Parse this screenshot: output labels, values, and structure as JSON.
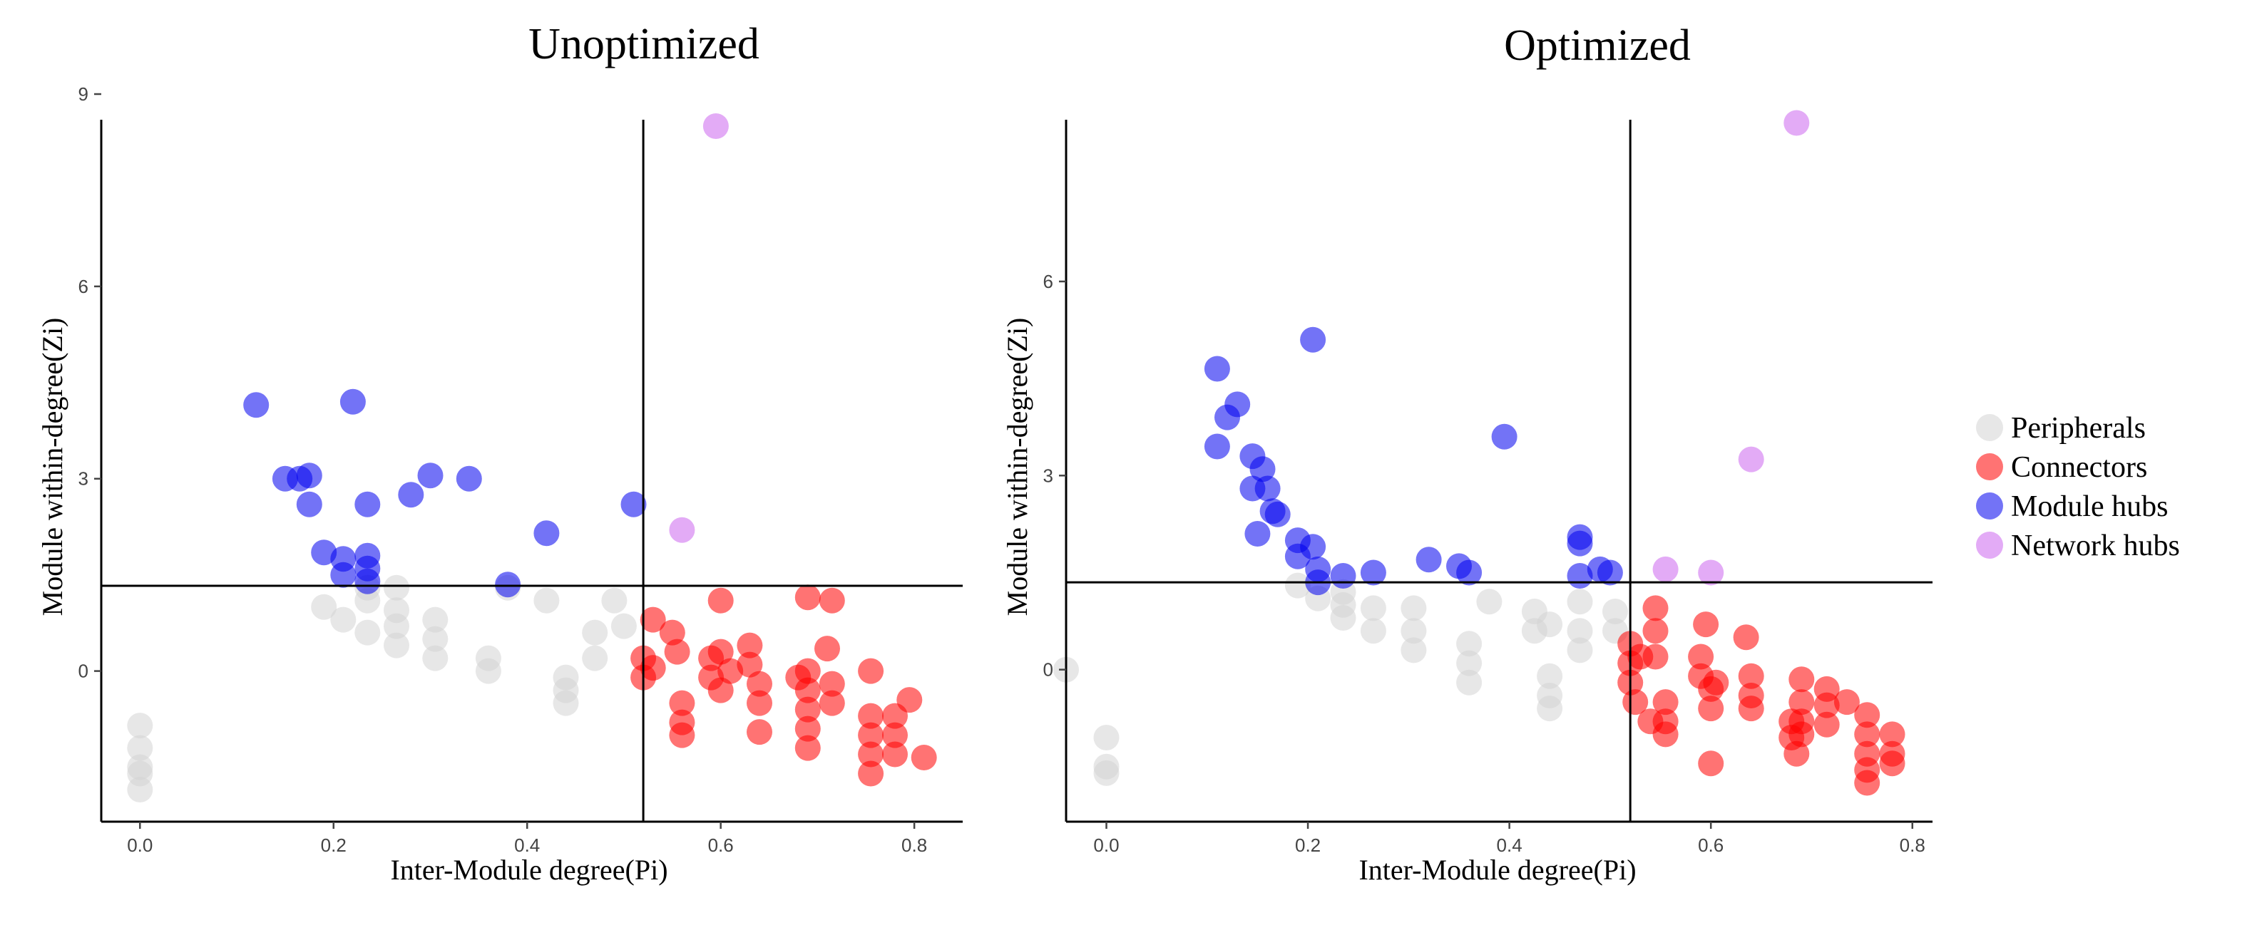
{
  "colors": {
    "Peripherals": "#d3d3d3",
    "Connectors": "#ff0000",
    "Module hubs": "#0000ee",
    "Network hubs": "#cc66ee"
  },
  "legend": {
    "items": [
      {
        "label": "Peripherals",
        "color": "#d3d3d3"
      },
      {
        "label": "Connectors",
        "color": "#ff0000"
      },
      {
        "label": "Module hubs",
        "color": "#0000ee"
      },
      {
        "label": "Network hubs",
        "color": "#cc66ee"
      }
    ],
    "placement": "right"
  },
  "chart_data": [
    {
      "type": "scatter",
      "title": "Unoptimized",
      "xlabel": "Inter-Module degree(Pi)",
      "ylabel": "Module within-degree(Zi)",
      "xlim": [
        -0.04,
        0.85
      ],
      "ylim": [
        -2.35,
        8.6
      ],
      "xticks": [
        "0.0",
        "0.2",
        "0.4",
        "0.6",
        "0.8"
      ],
      "yticks": [
        "0",
        "3",
        "6",
        "9"
      ],
      "ref_lines": {
        "x": 0.52,
        "y": 1.33
      },
      "grid": false,
      "series": [
        {
          "name": "Peripherals",
          "points": [
            [
              0,
              -0.85
            ],
            [
              0,
              -1.2
            ],
            [
              0,
              -1.5
            ],
            [
              0,
              -1.85
            ],
            [
              0,
              -1.6
            ],
            [
              0.19,
              1.0
            ],
            [
              0.21,
              0.8
            ],
            [
              0.235,
              0.6
            ],
            [
              0.235,
              1.1
            ],
            [
              0.235,
              1.3
            ],
            [
              0.265,
              0.4
            ],
            [
              0.265,
              0.7
            ],
            [
              0.265,
              0.95
            ],
            [
              0.265,
              1.3
            ],
            [
              0.305,
              0.2
            ],
            [
              0.305,
              0.5
            ],
            [
              0.305,
              0.8
            ],
            [
              0.36,
              0.0
            ],
            [
              0.36,
              0.2
            ],
            [
              0.42,
              1.1
            ],
            [
              0.44,
              -0.1
            ],
            [
              0.44,
              -0.3
            ],
            [
              0.44,
              -0.5
            ],
            [
              0.47,
              0.6
            ],
            [
              0.47,
              0.2
            ],
            [
              0.49,
              1.1
            ],
            [
              0.5,
              0.7
            ],
            [
              0.38,
              1.3
            ]
          ]
        },
        {
          "name": "Connectors",
          "points": [
            [
              0.53,
              0.8
            ],
            [
              0.52,
              0.2
            ],
            [
              0.52,
              -0.1
            ],
            [
              0.53,
              0.05
            ],
            [
              0.55,
              0.6
            ],
            [
              0.555,
              0.3
            ],
            [
              0.56,
              -0.5
            ],
            [
              0.56,
              -0.8
            ],
            [
              0.56,
              -1.0
            ],
            [
              0.59,
              0.2
            ],
            [
              0.59,
              -0.1
            ],
            [
              0.6,
              1.1
            ],
            [
              0.6,
              0.3
            ],
            [
              0.6,
              -0.3
            ],
            [
              0.61,
              0.0
            ],
            [
              0.63,
              0.4
            ],
            [
              0.63,
              0.1
            ],
            [
              0.64,
              -0.2
            ],
            [
              0.64,
              -0.5
            ],
            [
              0.64,
              -0.95
            ],
            [
              0.68,
              -0.1
            ],
            [
              0.69,
              0.0
            ],
            [
              0.69,
              -0.3
            ],
            [
              0.69,
              -0.6
            ],
            [
              0.69,
              -0.9
            ],
            [
              0.69,
              -1.2
            ],
            [
              0.69,
              1.15
            ],
            [
              0.71,
              0.35
            ],
            [
              0.715,
              1.1
            ],
            [
              0.715,
              -0.2
            ],
            [
              0.715,
              -0.5
            ],
            [
              0.755,
              0.0
            ],
            [
              0.755,
              -0.7
            ],
            [
              0.755,
              -1.0
            ],
            [
              0.755,
              -1.3
            ],
            [
              0.755,
              -1.6
            ],
            [
              0.78,
              -0.7
            ],
            [
              0.78,
              -1.0
            ],
            [
              0.78,
              -1.3
            ],
            [
              0.795,
              -0.45
            ],
            [
              0.81,
              -1.35
            ]
          ]
        },
        {
          "name": "Module hubs",
          "points": [
            [
              0.12,
              4.15
            ],
            [
              0.15,
              3.0
            ],
            [
              0.165,
              3.0
            ],
            [
              0.175,
              3.05
            ],
            [
              0.175,
              2.6
            ],
            [
              0.19,
              1.85
            ],
            [
              0.21,
              1.75
            ],
            [
              0.21,
              1.5
            ],
            [
              0.22,
              4.2
            ],
            [
              0.235,
              2.6
            ],
            [
              0.235,
              1.8
            ],
            [
              0.235,
              1.6
            ],
            [
              0.235,
              1.4
            ],
            [
              0.28,
              2.75
            ],
            [
              0.3,
              3.05
            ],
            [
              0.34,
              3.0
            ],
            [
              0.38,
              1.35
            ],
            [
              0.42,
              2.15
            ],
            [
              0.51,
              2.6
            ]
          ]
        },
        {
          "name": "Network hubs",
          "points": [
            [
              0.595,
              8.5
            ],
            [
              0.56,
              2.2
            ]
          ]
        }
      ]
    },
    {
      "type": "scatter",
      "title": "Optimized",
      "xlabel": "Inter-Module degree(Pi)",
      "ylabel": "Module within-degree(Zi)",
      "xlim": [
        -0.04,
        0.82
      ],
      "ylim": [
        -2.35,
        8.5
      ],
      "xticks": [
        "0.0",
        "0.2",
        "0.4",
        "0.6",
        "0.8"
      ],
      "yticks": [
        "0",
        "3",
        "6"
      ],
      "ref_lines": {
        "x": 0.52,
        "y": 1.35
      },
      "grid": false,
      "series": [
        {
          "name": "Peripherals",
          "points": [
            [
              -0.04,
              0.0
            ],
            [
              0,
              -1.05
            ],
            [
              0,
              -1.5
            ],
            [
              0,
              -1.6
            ],
            [
              0.19,
              1.3
            ],
            [
              0.21,
              1.1
            ],
            [
              0.235,
              0.8
            ],
            [
              0.235,
              1.0
            ],
            [
              0.235,
              1.2
            ],
            [
              0.265,
              0.6
            ],
            [
              0.265,
              0.95
            ],
            [
              0.305,
              0.3
            ],
            [
              0.305,
              0.6
            ],
            [
              0.305,
              0.95
            ],
            [
              0.36,
              -0.2
            ],
            [
              0.36,
              0.1
            ],
            [
              0.36,
              0.4
            ],
            [
              0.38,
              1.05
            ],
            [
              0.425,
              0.6
            ],
            [
              0.425,
              0.9
            ],
            [
              0.44,
              -0.1
            ],
            [
              0.44,
              -0.4
            ],
            [
              0.44,
              -0.6
            ],
            [
              0.44,
              0.7
            ],
            [
              0.47,
              0.3
            ],
            [
              0.47,
              0.6
            ],
            [
              0.47,
              1.05
            ],
            [
              0.505,
              0.6
            ],
            [
              0.505,
              0.9
            ]
          ]
        },
        {
          "name": "Connectors",
          "points": [
            [
              0.52,
              0.4
            ],
            [
              0.52,
              0.1
            ],
            [
              0.52,
              -0.2
            ],
            [
              0.525,
              -0.5
            ],
            [
              0.53,
              0.2
            ],
            [
              0.54,
              -0.8
            ],
            [
              0.545,
              0.95
            ],
            [
              0.545,
              0.6
            ],
            [
              0.545,
              0.2
            ],
            [
              0.555,
              -0.5
            ],
            [
              0.555,
              -0.8
            ],
            [
              0.555,
              -1.0
            ],
            [
              0.59,
              0.2
            ],
            [
              0.59,
              -0.1
            ],
            [
              0.595,
              0.7
            ],
            [
              0.6,
              -0.3
            ],
            [
              0.6,
              -0.6
            ],
            [
              0.6,
              -1.45
            ],
            [
              0.605,
              -0.2
            ],
            [
              0.635,
              0.5
            ],
            [
              0.64,
              -0.1
            ],
            [
              0.64,
              -0.4
            ],
            [
              0.64,
              -0.6
            ],
            [
              0.68,
              -0.8
            ],
            [
              0.68,
              -1.05
            ],
            [
              0.685,
              -1.3
            ],
            [
              0.69,
              -0.15
            ],
            [
              0.69,
              -0.5
            ],
            [
              0.69,
              -0.8
            ],
            [
              0.69,
              -1.0
            ],
            [
              0.715,
              -0.3
            ],
            [
              0.715,
              -0.55
            ],
            [
              0.715,
              -0.85
            ],
            [
              0.735,
              -0.5
            ],
            [
              0.755,
              -0.7
            ],
            [
              0.755,
              -1.0
            ],
            [
              0.755,
              -1.3
            ],
            [
              0.755,
              -1.55
            ],
            [
              0.755,
              -1.75
            ],
            [
              0.78,
              -1.0
            ],
            [
              0.78,
              -1.3
            ],
            [
              0.78,
              -1.45
            ]
          ]
        },
        {
          "name": "Module hubs",
          "points": [
            [
              0.11,
              4.65
            ],
            [
              0.11,
              3.45
            ],
            [
              0.12,
              3.9
            ],
            [
              0.13,
              4.1
            ],
            [
              0.145,
              3.3
            ],
            [
              0.145,
              2.8
            ],
            [
              0.15,
              2.1
            ],
            [
              0.155,
              3.1
            ],
            [
              0.16,
              2.8
            ],
            [
              0.165,
              2.45
            ],
            [
              0.17,
              2.4
            ],
            [
              0.19,
              2.0
            ],
            [
              0.19,
              1.75
            ],
            [
              0.205,
              5.1
            ],
            [
              0.205,
              1.9
            ],
            [
              0.21,
              1.55
            ],
            [
              0.21,
              1.35
            ],
            [
              0.235,
              1.45
            ],
            [
              0.265,
              1.5
            ],
            [
              0.32,
              1.7
            ],
            [
              0.35,
              1.6
            ],
            [
              0.36,
              1.5
            ],
            [
              0.395,
              3.6
            ],
            [
              0.47,
              2.05
            ],
            [
              0.47,
              1.95
            ],
            [
              0.47,
              1.45
            ],
            [
              0.49,
              1.55
            ],
            [
              0.5,
              1.5
            ]
          ]
        },
        {
          "name": "Network hubs",
          "points": [
            [
              0.685,
              8.45
            ],
            [
              0.64,
              3.25
            ],
            [
              0.555,
              1.55
            ],
            [
              0.6,
              1.5
            ]
          ]
        }
      ]
    }
  ]
}
